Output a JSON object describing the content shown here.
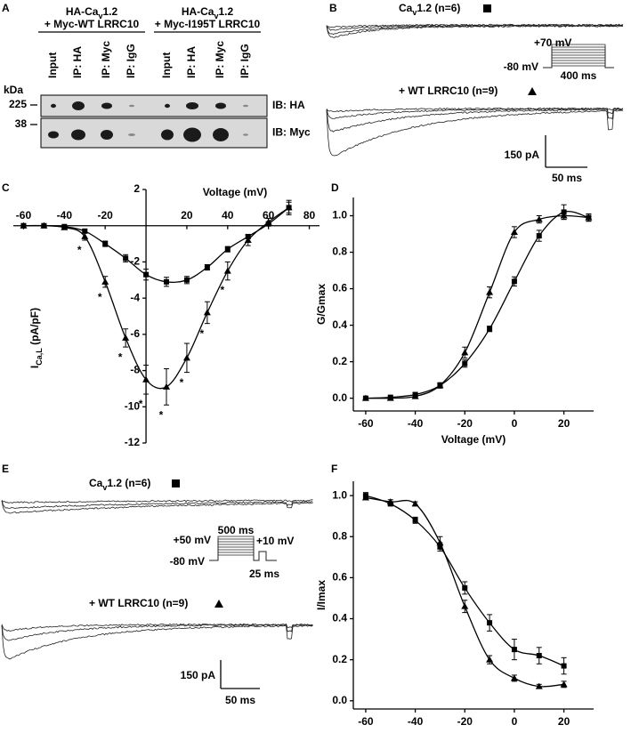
{
  "chart_data": [
    {
      "type": "blot",
      "panel": "A",
      "groups": [
        {
          "title": [
            "HA-Ca",
            "v",
            "1.2"
          ],
          "subtitle": "+ Myc-WT LRRC10"
        },
        {
          "title": [
            "HA-Ca",
            "v",
            "1.2"
          ],
          "subtitle": "+ Myc-I195T LRRC10"
        }
      ],
      "lanes": [
        "Input",
        "IP: HA",
        "IP: Myc",
        "IP: IgG",
        "Input",
        "IP: HA",
        "IP: Myc",
        "IP: IgG"
      ],
      "marker_unit": "kDa",
      "markers": [
        225,
        38
      ],
      "blots": [
        "IB: HA",
        "IB: Myc"
      ]
    },
    {
      "type": "trace",
      "panel": "B",
      "labels": [
        [
          "Ca",
          "v",
          "1.2 (n=6)"
        ],
        [
          "+ WT LRRC10 (n=9)"
        ]
      ],
      "protocol": [
        "+70 mV",
        "-80 mV",
        "400 ms"
      ],
      "scale": [
        "150 pA",
        "50 ms"
      ]
    },
    {
      "type": "line",
      "panel": "C",
      "xlabel": "Voltage (mV)",
      "ylabel": [
        "I",
        "Ca,L",
        " (pA/pF)"
      ],
      "x": [
        -60,
        -50,
        -40,
        -30,
        -20,
        -10,
        0,
        10,
        20,
        30,
        40,
        50,
        60,
        70
      ],
      "series": [
        {
          "marker": "square",
          "color": "#000000",
          "values": [
            0,
            0,
            -0.05,
            -0.3,
            -1.0,
            -1.8,
            -2.7,
            -3.1,
            -3.0,
            -2.3,
            -1.3,
            -0.6,
            0.1,
            1.0
          ],
          "errors": [
            0.05,
            0.05,
            0.05,
            0.1,
            0.15,
            0.2,
            0.3,
            0.25,
            0.2,
            0.15,
            0.15,
            0.1,
            0.1,
            0.3
          ]
        },
        {
          "marker": "triangle",
          "color": "#000000",
          "values": [
            0,
            0,
            -0.1,
            -0.6,
            -3.1,
            -6.2,
            -8.5,
            -8.9,
            -7.3,
            -4.8,
            -2.5,
            -0.8,
            0.2,
            1.0
          ],
          "errors": [
            0.05,
            0.05,
            0.1,
            0.2,
            0.3,
            0.5,
            0.8,
            1.0,
            0.8,
            0.6,
            0.5,
            0.3,
            0.2,
            0.4
          ]
        }
      ],
      "significance_marker": "*",
      "significant_x": [
        -30,
        -20,
        -10,
        0,
        10,
        20,
        30,
        40
      ],
      "xlim": [
        -65,
        85
      ],
      "ylim": [
        -12,
        2
      ],
      "xticks": [
        -60,
        -40,
        -20,
        20,
        40,
        60,
        80
      ],
      "yticks": [
        2,
        -2,
        -4,
        -6,
        -8,
        -10,
        -12
      ]
    },
    {
      "type": "line",
      "panel": "D",
      "xlabel": "Voltage (mV)",
      "ylabel": [
        "G/Gmax"
      ],
      "x": [
        -60,
        -50,
        -40,
        -30,
        -20,
        -10,
        0,
        10,
        20,
        30
      ],
      "series": [
        {
          "marker": "square",
          "color": "#000000",
          "values": [
            0.0,
            0.005,
            0.02,
            0.07,
            0.19,
            0.38,
            0.64,
            0.89,
            1.02,
            0.99
          ],
          "errors": [
            0.005,
            0.005,
            0.01,
            0.015,
            0.02,
            0.015,
            0.025,
            0.03,
            0.04,
            0.02
          ]
        },
        {
          "marker": "triangle",
          "color": "#000000",
          "values": [
            0.0,
            0.0,
            0.01,
            0.07,
            0.25,
            0.58,
            0.91,
            0.98,
            1.0,
            0.99
          ],
          "errors": [
            0.005,
            0.005,
            0.01,
            0.01,
            0.03,
            0.03,
            0.03,
            0.02,
            0.02,
            0.02
          ]
        }
      ],
      "xlim": [
        -65,
        32
      ],
      "ylim": [
        -0.07,
        1.1
      ],
      "xticks": [
        -60,
        -40,
        -20,
        0,
        20
      ],
      "yticks": [
        {
          "value": 0,
          "label": "0.0"
        },
        0.2,
        0.4,
        0.6,
        0.8,
        {
          "value": 1,
          "label": "1.0"
        }
      ]
    },
    {
      "type": "trace",
      "panel": "E",
      "labels": [
        [
          "Ca",
          "v",
          "1.2 (n=6)"
        ],
        [
          "+ WT LRRC10 (n=9)"
        ]
      ],
      "protocol": [
        "+50 mV",
        "500 ms",
        "+10 mV",
        "-80 mV",
        "25 ms"
      ],
      "scale": [
        "150 pA",
        "50 ms"
      ]
    },
    {
      "type": "line",
      "panel": "F",
      "xlabel": "Voltage (mV)",
      "ylabel": [
        "I/Imax"
      ],
      "x": [
        -60,
        -50,
        -40,
        -30,
        -20,
        -10,
        0,
        10,
        20
      ],
      "series": [
        {
          "marker": "square",
          "color": "#000000",
          "values": [
            1.0,
            0.96,
            0.88,
            0.75,
            0.55,
            0.38,
            0.25,
            0.22,
            0.17
          ],
          "errors": [
            0.015,
            0.01,
            0.015,
            0.02,
            0.03,
            0.04,
            0.05,
            0.04,
            0.04
          ]
        },
        {
          "marker": "triangle",
          "color": "#000000",
          "values": [
            0.99,
            0.97,
            0.96,
            0.77,
            0.46,
            0.2,
            0.11,
            0.07,
            0.08
          ],
          "errors": [
            0.01,
            0.01,
            0.01,
            0.03,
            0.03,
            0.02,
            0.015,
            0.01,
            0.015
          ]
        }
      ],
      "xlim": [
        -65,
        32
      ],
      "ylim": [
        -0.04,
        1.07
      ],
      "xticks": [
        -60,
        -40,
        -20,
        0,
        20
      ],
      "yticks": [
        {
          "value": 0,
          "label": "0.0"
        },
        0.2,
        0.4,
        0.6,
        0.8,
        {
          "value": 1,
          "label": "1.0"
        }
      ]
    }
  ]
}
